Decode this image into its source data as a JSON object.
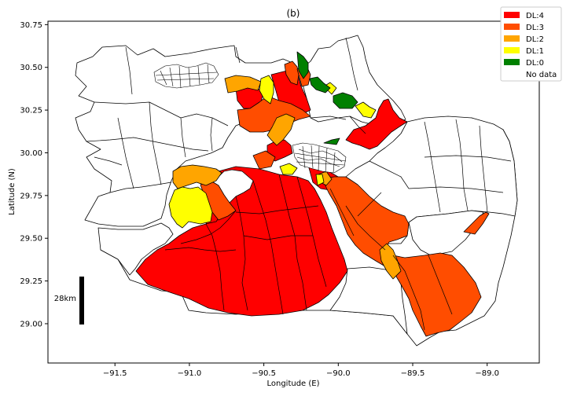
{
  "title": "(b)",
  "xlabel": "Longitude (E)",
  "ylabel": "Latitude (N)",
  "scale_bar_label": "28km",
  "colors": {
    "dl4": "#ff0000",
    "dl3": "#ff4d00",
    "dl2": "#ffa500",
    "dl1": "#ffff00",
    "dl0": "#008000",
    "nodata": "#ffffff",
    "outline": "#000000"
  },
  "legend": [
    {
      "label": "DL:4",
      "color": "#ff0000"
    },
    {
      "label": "DL:3",
      "color": "#ff4d00"
    },
    {
      "label": "DL:2",
      "color": "#ffa500"
    },
    {
      "label": "DL:1",
      "color": "#ffff00"
    },
    {
      "label": "DL:0",
      "color": "#008000"
    },
    {
      "label": "No data",
      "color": "#ffffff"
    }
  ],
  "chart_data": {
    "type": "map",
    "xlim": [
      -91.95,
      -88.65
    ],
    "ylim": [
      28.77,
      30.77
    ],
    "x_ticks": [
      -91.5,
      -91.0,
      -90.5,
      -90.0,
      -89.5,
      -89.0
    ],
    "y_ticks": [
      29.0,
      29.25,
      29.5,
      29.75,
      30.0,
      30.25,
      30.5,
      30.75
    ],
    "x_tick_labels": [
      "−91.5",
      "−91.0",
      "−90.5",
      "−90.0",
      "−89.5",
      "−89.0"
    ],
    "y_tick_labels": [
      "29.00",
      "29.25",
      "29.50",
      "29.75",
      "30.00",
      "30.25",
      "30.50",
      "30.75"
    ],
    "legend_position": "top-right",
    "grid": false
  }
}
